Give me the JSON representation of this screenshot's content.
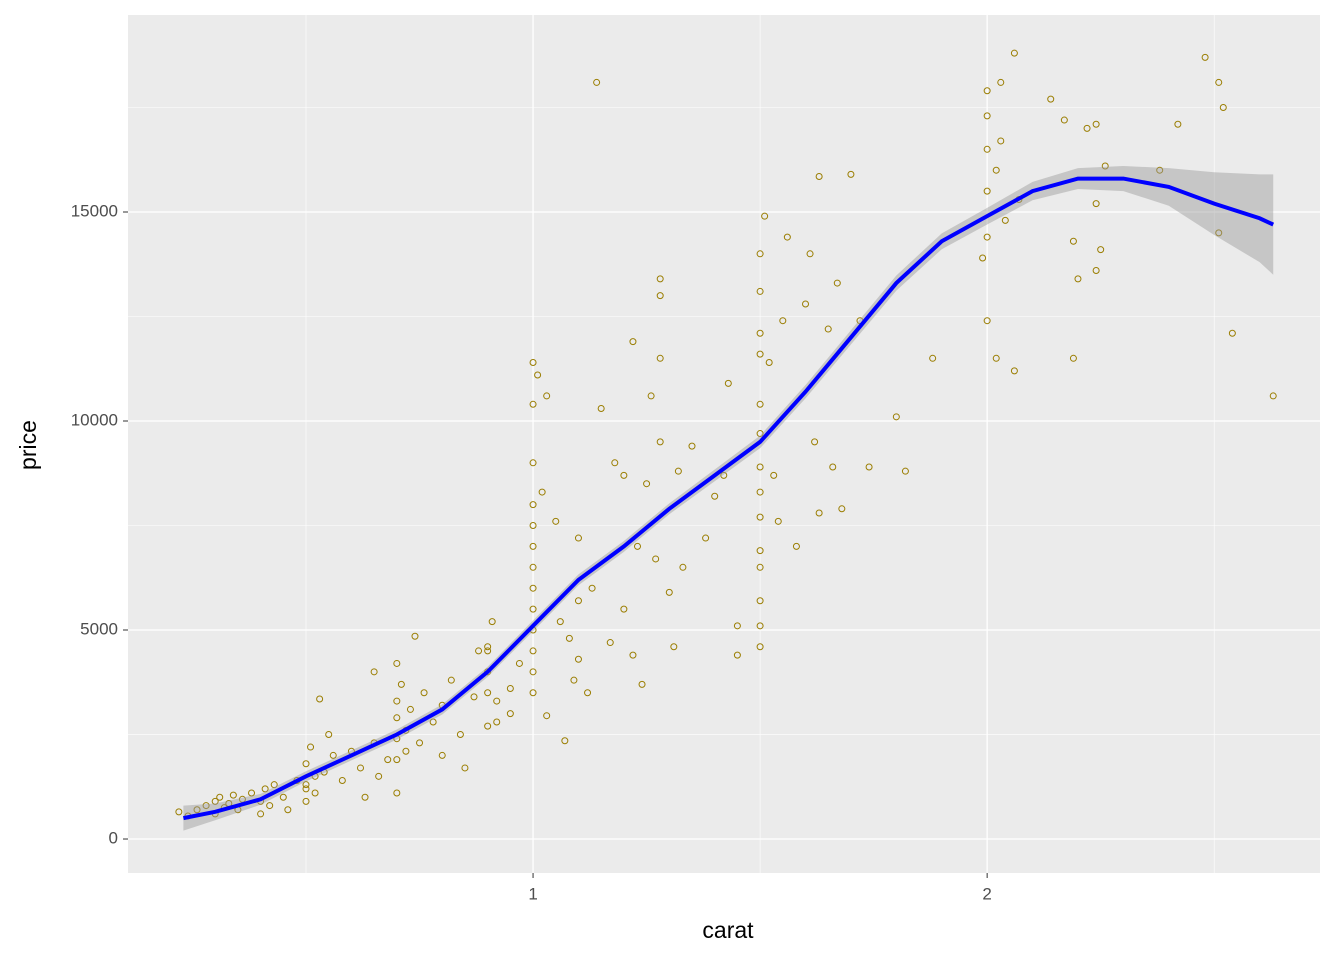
{
  "chart_data": {
    "type": "scatter",
    "x_label": "carat",
    "y_label": "price",
    "xlim": [
      0.108,
      2.733
    ],
    "ylim": [
      -813,
      19713
    ],
    "xticks": [
      1,
      2
    ],
    "yticks": [
      0,
      5000,
      10000,
      15000
    ],
    "x_minor_ticks": [
      0.5,
      1.5,
      2.5
    ],
    "y_minor_ticks": [
      2500,
      7500,
      12500,
      17500
    ],
    "grid": true,
    "color": "#9a7d00",
    "x": [
      0.22,
      0.24,
      0.26,
      0.28,
      0.3,
      0.3,
      0.31,
      0.32,
      0.33,
      0.34,
      0.35,
      0.36,
      0.38,
      0.4,
      0.4,
      0.41,
      0.42,
      0.43,
      0.45,
      0.46,
      0.48,
      0.5,
      0.52,
      0.5,
      0.5,
      0.5,
      0.51,
      0.52,
      0.53,
      0.54,
      0.55,
      0.56,
      0.58,
      0.6,
      0.62,
      0.63,
      0.65,
      0.66,
      0.68,
      0.65,
      0.7,
      0.7,
      0.7,
      0.7,
      0.7,
      0.7,
      0.71,
      0.72,
      0.72,
      0.73,
      0.74,
      0.75,
      0.76,
      0.78,
      0.8,
      0.8,
      0.82,
      0.84,
      0.85,
      0.87,
      0.88,
      0.9,
      0.9,
      0.92,
      0.95,
      0.9,
      0.9,
      0.9,
      0.91,
      0.92,
      0.95,
      0.97,
      1,
      1,
      1,
      1,
      1,
      1,
      1,
      1,
      1,
      1,
      1,
      1,
      1,
      1.01,
      1.02,
      1.03,
      1.03,
      1.05,
      1.06,
      1.07,
      1.08,
      1.09,
      1.1,
      1.1,
      1.1,
      1.12,
      1.13,
      1.14,
      1.15,
      1.17,
      1.18,
      1.2,
      1.2,
      1.22,
      1.22,
      1.23,
      1.24,
      1.25,
      1.26,
      1.27,
      1.28,
      1.28,
      1.28,
      1.28,
      1.3,
      1.31,
      1.32,
      1.33,
      1.35,
      1.38,
      1.4,
      1.42,
      1.43,
      1.45,
      1.45,
      1.5,
      1.5,
      1.5,
      1.5,
      1.5,
      1.5,
      1.5,
      1.5,
      1.5,
      1.5,
      1.5,
      1.5,
      1.5,
      1.5,
      1.51,
      1.52,
      1.53,
      1.54,
      1.55,
      1.56,
      1.58,
      1.6,
      1.61,
      1.62,
      1.63,
      1.63,
      1.65,
      1.66,
      1.67,
      1.68,
      1.7,
      1.72,
      1.74,
      1.8,
      1.82,
      1.88,
      1.99,
      2,
      2,
      2,
      2,
      2,
      2,
      2.02,
      2.02,
      2.03,
      2.03,
      2.04,
      2.06,
      2.07,
      2.06,
      2.14,
      2.17,
      2.19,
      2.19,
      2.2,
      2.24,
      2.22,
      2.24,
      2.24,
      2.25,
      2.26,
      2.38,
      2.42,
      2.48,
      2.51,
      2.52,
      2.51,
      2.54,
      2.63
    ],
    "values": [
      650,
      550,
      700,
      800,
      900,
      600,
      1000,
      750,
      850,
      1050,
      700,
      950,
      1100,
      900,
      600,
      1200,
      800,
      1300,
      1000,
      700,
      1400,
      1200,
      1500,
      900,
      1300,
      1800,
      2200,
      1100,
      3350,
      1600,
      2500,
      2000,
      1400,
      2100,
      1700,
      1000,
      2300,
      1500,
      1900,
      4000,
      1100,
      1900,
      2400,
      2900,
      3300,
      4200,
      3700,
      2100,
      2600,
      3100,
      4850,
      2300,
      3500,
      2800,
      3200,
      2000,
      3800,
      2500,
      1700,
      3400,
      4500,
      4500,
      2700,
      2800,
      3000,
      3500,
      4000,
      4600,
      5200,
      3300,
      3600,
      4200,
      3500,
      4000,
      4500,
      5000,
      5500,
      6000,
      6500,
      7000,
      7500,
      8000,
      9000,
      10400,
      11400,
      11100,
      8300,
      10600,
      2950,
      7600,
      5200,
      2350,
      4800,
      3800,
      5700,
      7200,
      4300,
      3500,
      6000,
      18100,
      10300,
      4700,
      9000,
      8700,
      5500,
      11900,
      4400,
      7000,
      3700,
      8500,
      10600,
      6700,
      9500,
      13400,
      13000,
      11500,
      5900,
      4600,
      8800,
      6500,
      9400,
      7200,
      8200,
      8700,
      10900,
      5100,
      4400,
      6500,
      4600,
      5100,
      5700,
      6900,
      7700,
      8300,
      8900,
      9700,
      10400,
      11600,
      12100,
      13100,
      14000,
      14900,
      11400,
      8700,
      7600,
      12400,
      14400,
      7000,
      12800,
      14000,
      9500,
      7800,
      15850,
      12200,
      8900,
      13300,
      7900,
      15900,
      12400,
      8900,
      10100,
      8800,
      11500,
      13900,
      14400,
      15500,
      16500,
      17300,
      17900,
      12400,
      11500,
      16000,
      16700,
      18100,
      14800,
      11200,
      15300,
      18800,
      17700,
      17200,
      14300,
      11500,
      13400,
      13600,
      17000,
      17100,
      15200,
      14100,
      16100,
      16000,
      17100,
      18700,
      18100,
      17500,
      14500,
      12100,
      10600
    ],
    "smooth": {
      "color": "#0000ff",
      "band_color": "#999999",
      "x": [
        0.23,
        0.3,
        0.4,
        0.5,
        0.6,
        0.7,
        0.8,
        0.9,
        1.0,
        1.1,
        1.2,
        1.3,
        1.4,
        1.5,
        1.6,
        1.7,
        1.8,
        1.9,
        2.0,
        2.1,
        2.2,
        2.3,
        2.4,
        2.5,
        2.6,
        2.63
      ],
      "values": [
        500,
        650,
        950,
        1500,
        2000,
        2500,
        3100,
        4000,
        5100,
        6200,
        7000,
        7900,
        8700,
        9500,
        10700,
        12000,
        13300,
        14300,
        14900,
        15500,
        15800,
        15800,
        15600,
        15200,
        14850,
        14700
      ],
      "lower": [
        200,
        450,
        820,
        1380,
        1880,
        2380,
        2980,
        3880,
        4970,
        6070,
        6870,
        7770,
        8560,
        9350,
        10540,
        11830,
        13120,
        14110,
        14700,
        15280,
        15550,
        15500,
        15150,
        14450,
        13800,
        13500
      ],
      "upper": [
        800,
        850,
        1080,
        1620,
        2120,
        2620,
        3220,
        4120,
        5230,
        6330,
        7130,
        8030,
        8840,
        9650,
        10860,
        12170,
        13480,
        14490,
        15100,
        15720,
        16050,
        16100,
        16050,
        15950,
        15900,
        15900
      ]
    }
  }
}
